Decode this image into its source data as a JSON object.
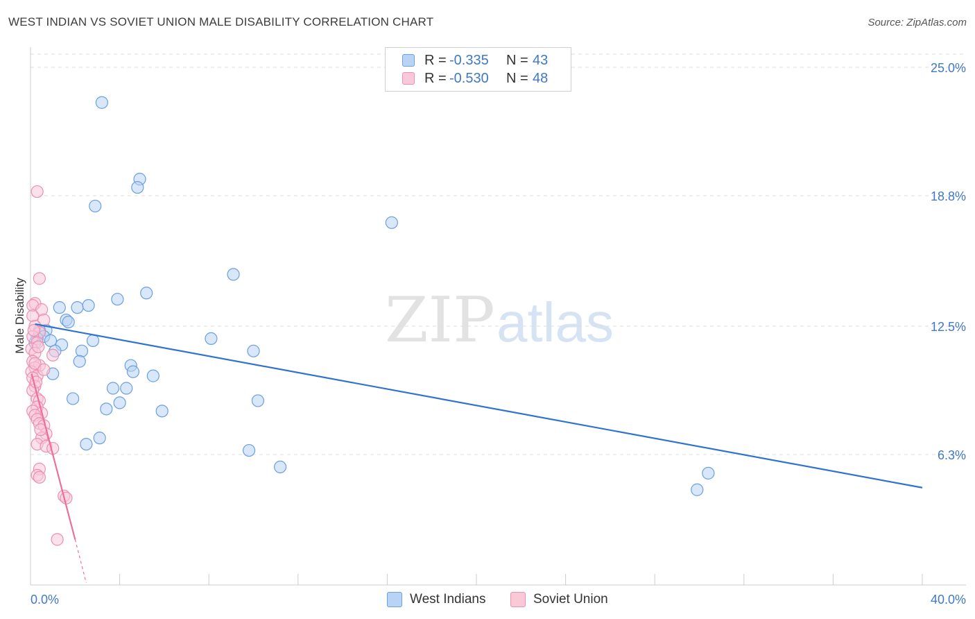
{
  "chart_data": {
    "type": "scatter",
    "title": "WEST INDIAN VS SOVIET UNION MALE DISABILITY CORRELATION CHART",
    "source": "Source: ZipAtlas.com",
    "watermark": "ZIPatlas",
    "ylabel": "Male Disability",
    "xlim": [
      0,
      40
    ],
    "ylim": [
      0,
      25
    ],
    "x_tick_labels": [
      "0.0%",
      "40.0%"
    ],
    "y_ticks": [
      {
        "value": 6.3,
        "label": "6.3%"
      },
      {
        "value": 12.5,
        "label": "12.5%"
      },
      {
        "value": 18.8,
        "label": "18.8%"
      },
      {
        "value": 25.0,
        "label": "25.0%"
      }
    ],
    "legend": [
      {
        "r_label": "R =",
        "r_value": "-0.335",
        "n_label": "N =",
        "n_value": "43"
      },
      {
        "r_label": "R =",
        "r_value": "-0.530",
        "n_label": "N =",
        "n_value": "48"
      }
    ],
    "series": [
      {
        "name": "West Indians",
        "color": "#6a9fe0",
        "fill": "#b8d3f4",
        "line_color": "#2f72d0",
        "trend": {
          "x": [
            0.2,
            40
          ],
          "y": [
            12.6,
            4.7
          ]
        },
        "points": [
          [
            3.2,
            23.3
          ],
          [
            4.9,
            19.6
          ],
          [
            4.8,
            19.2
          ],
          [
            2.9,
            18.3
          ],
          [
            16.2,
            17.5
          ],
          [
            9.1,
            15.0
          ],
          [
            5.2,
            14.1
          ],
          [
            3.9,
            13.8
          ],
          [
            1.3,
            13.4
          ],
          [
            2.1,
            13.4
          ],
          [
            2.6,
            13.5
          ],
          [
            1.6,
            12.8
          ],
          [
            1.7,
            12.7
          ],
          [
            0.7,
            12.3
          ],
          [
            0.4,
            12.3
          ],
          [
            0.6,
            12.0
          ],
          [
            0.3,
            11.9
          ],
          [
            0.9,
            11.8
          ],
          [
            8.1,
            11.9
          ],
          [
            2.8,
            11.8
          ],
          [
            1.4,
            11.6
          ],
          [
            0.2,
            11.7
          ],
          [
            1.1,
            11.3
          ],
          [
            2.3,
            11.3
          ],
          [
            10.0,
            11.3
          ],
          [
            2.2,
            10.8
          ],
          [
            4.5,
            10.6
          ],
          [
            4.6,
            10.3
          ],
          [
            1.0,
            10.2
          ],
          [
            5.5,
            10.1
          ],
          [
            3.7,
            9.5
          ],
          [
            4.3,
            9.5
          ],
          [
            1.9,
            9.0
          ],
          [
            10.2,
            8.9
          ],
          [
            4.0,
            8.8
          ],
          [
            3.4,
            8.5
          ],
          [
            5.9,
            8.4
          ],
          [
            3.1,
            7.1
          ],
          [
            2.5,
            6.8
          ],
          [
            9.8,
            6.5
          ],
          [
            11.2,
            5.7
          ],
          [
            30.4,
            5.4
          ],
          [
            29.9,
            4.6
          ]
        ]
      },
      {
        "name": "Soviet Union",
        "color": "#ec8fb0",
        "fill": "#f9c9d8",
        "line_color": "#e8709a",
        "trend": {
          "x": [
            0.05,
            2.0
          ],
          "y": [
            10.2,
            2.2
          ]
        },
        "trend_dashed": {
          "x": [
            2.0,
            2.5
          ],
          "y": [
            2.2,
            0.1
          ]
        },
        "points": [
          [
            0.3,
            19.0
          ],
          [
            0.4,
            14.8
          ],
          [
            0.2,
            13.6
          ],
          [
            0.1,
            13.5
          ],
          [
            0.5,
            13.3
          ],
          [
            0.1,
            13.0
          ],
          [
            0.6,
            12.8
          ],
          [
            0.2,
            12.5
          ],
          [
            0.4,
            12.2
          ],
          [
            0.1,
            12.0
          ],
          [
            0.3,
            11.7
          ],
          [
            0.05,
            11.4
          ],
          [
            0.2,
            11.2
          ],
          [
            1.0,
            11.1
          ],
          [
            0.1,
            10.8
          ],
          [
            0.4,
            10.6
          ],
          [
            0.2,
            10.5
          ],
          [
            0.05,
            10.3
          ],
          [
            0.3,
            10.1
          ],
          [
            0.1,
            10.0
          ],
          [
            0.2,
            9.6
          ],
          [
            0.1,
            9.4
          ],
          [
            0.3,
            9.0
          ],
          [
            0.4,
            8.9
          ],
          [
            0.3,
            8.6
          ],
          [
            0.1,
            8.4
          ],
          [
            0.5,
            8.3
          ],
          [
            0.2,
            8.2
          ],
          [
            0.3,
            8.0
          ],
          [
            0.4,
            7.8
          ],
          [
            0.6,
            7.7
          ],
          [
            0.7,
            7.3
          ],
          [
            0.5,
            7.1
          ],
          [
            0.3,
            6.8
          ],
          [
            0.7,
            6.7
          ],
          [
            1.0,
            6.6
          ],
          [
            0.4,
            5.6
          ],
          [
            0.3,
            5.3
          ],
          [
            0.4,
            5.2
          ],
          [
            1.5,
            4.3
          ],
          [
            1.6,
            4.2
          ],
          [
            1.2,
            2.2
          ],
          [
            0.2,
            10.7
          ],
          [
            0.6,
            10.4
          ],
          [
            0.15,
            12.3
          ],
          [
            0.35,
            11.5
          ],
          [
            0.25,
            9.8
          ],
          [
            0.45,
            7.5
          ]
        ]
      }
    ]
  }
}
